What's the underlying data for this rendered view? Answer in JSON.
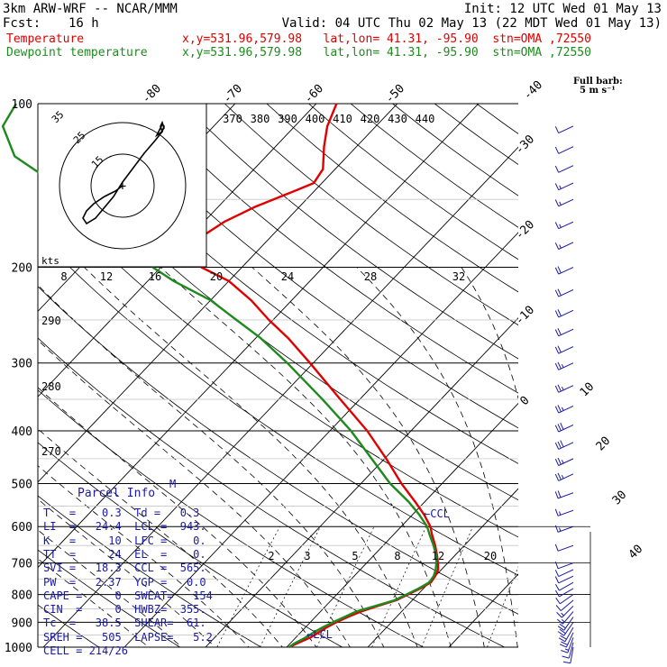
{
  "header": {
    "model": "3km ARW-WRF -- NCAR/MMM",
    "init": "Init: 12 UTC Wed 01 May 13",
    "fcst_label": "Fcst:",
    "fcst_value": "16 h",
    "valid": "Valid: 04 UTC Thu 02 May 13 (22 MDT Wed 01 May 13)",
    "temp_label": "Temperature",
    "temp_loc": "x,y=531.96,579.98   lat,lon= 41.31, -95.90  stn=OMA ,72550",
    "dew_label": "Dewpoint temperature",
    "dew_loc": "x,y=531.96,579.98   lat,lon= 41.31, -95.90  stn=OMA ,72550"
  },
  "barb_header": {
    "line1": "Full barb:",
    "line2": "5 m s⁻¹"
  },
  "hodo": {
    "kts_label": "kts",
    "rings": [
      "15",
      "25",
      "35"
    ]
  },
  "hodo_speed_ticks": [
    "8",
    "12",
    "16",
    "20",
    "24",
    "28",
    "32"
  ],
  "theta_e_labels": [
    "370",
    "380",
    "390",
    "400",
    "410",
    "420",
    "430",
    "440"
  ],
  "theta_labels": [
    "290",
    "280",
    "270"
  ],
  "mixing_labels": [
    "2",
    "3",
    "5",
    "8",
    "12",
    "20"
  ],
  "ccl_label": "CCL",
  "lcl_label": "LCL",
  "parcel": {
    "title": "Parcel Info",
    "lines": [
      "T   =    0.3  Td =   0.3",
      "LI  =   24.4  LCL =  943.",
      "K   =     10  LFC =    0.",
      "TT  =     24  EL  =    0.",
      "SVI =   18.3  CCL =  565.",
      "PW  =   2.37  YGP =   0.0",
      "CAPE =     0  SWEAT=   154",
      "CIN  =     0  HWBZ=  355.",
      "Tc  =   38.5  SHEAR=  61.",
      "SREH =   505  LAPSE=   5.2",
      "CELL = 214/26"
    ],
    "marker": "M"
  },
  "chart_data": {
    "type": "line",
    "title": "",
    "ylabel": "",
    "xlabel": "",
    "y_axis_scale": "log pressure (hPa)",
    "y_range_hPa": [
      1000,
      100
    ],
    "x_axis_scale": "skewed temperature (°C)",
    "pressure_ticks": [
      100,
      200,
      300,
      400,
      500,
      600,
      700,
      800,
      900,
      1000
    ],
    "isotherm_labels": [
      -80,
      -70,
      -60,
      -50,
      -40,
      -30,
      -20,
      -10,
      0,
      10,
      20,
      30,
      40
    ],
    "grid": true,
    "series": [
      {
        "name": "Temperature",
        "color": "#e00000",
        "points": [
          {
            "p": 1000,
            "t": 0.3
          },
          {
            "p": 985,
            "t": 0.8
          },
          {
            "p": 960,
            "t": 1.8
          },
          {
            "p": 940,
            "t": 2.2
          },
          {
            "p": 920,
            "t": 2.6
          },
          {
            "p": 900,
            "t": 3.2
          },
          {
            "p": 880,
            "t": 4.0
          },
          {
            "p": 860,
            "t": 5.0
          },
          {
            "p": 840,
            "t": 6.4
          },
          {
            "p": 820,
            "t": 8.0
          },
          {
            "p": 800,
            "t": 8.8
          },
          {
            "p": 780,
            "t": 9.6
          },
          {
            "p": 760,
            "t": 10.2
          },
          {
            "p": 740,
            "t": 10.0
          },
          {
            "p": 720,
            "t": 9.6
          },
          {
            "p": 700,
            "t": 8.8
          },
          {
            "p": 680,
            "t": 7.9
          },
          {
            "p": 650,
            "t": 6.4
          },
          {
            "p": 620,
            "t": 4.7
          },
          {
            "p": 600,
            "t": 3.6
          },
          {
            "p": 570,
            "t": 1.4
          },
          {
            "p": 540,
            "t": -1.2
          },
          {
            "p": 500,
            "t": -5.0
          },
          {
            "p": 450,
            "t": -9.8
          },
          {
            "p": 400,
            "t": -15.4
          },
          {
            "p": 350,
            "t": -22.4
          },
          {
            "p": 300,
            "t": -30.4
          },
          {
            "p": 270,
            "t": -36.0
          },
          {
            "p": 250,
            "t": -40.5
          },
          {
            "p": 230,
            "t": -45.0
          },
          {
            "p": 212,
            "t": -50.0
          },
          {
            "p": 200,
            "t": -55.0
          },
          {
            "p": 185,
            "t": -58.5
          },
          {
            "p": 175,
            "t": -58.5
          },
          {
            "p": 165,
            "t": -57.5
          },
          {
            "p": 155,
            "t": -55.5
          },
          {
            "p": 145,
            "t": -52.5
          },
          {
            "p": 140,
            "t": -51.0
          },
          {
            "p": 132,
            "t": -51.5
          },
          {
            "p": 120,
            "t": -54.0
          },
          {
            "p": 110,
            "t": -56.0
          },
          {
            "p": 100,
            "t": -57.5
          }
        ]
      },
      {
        "name": "Dewpoint temperature",
        "color": "#1e8a1e",
        "points": [
          {
            "p": 1000,
            "t": 0.3
          },
          {
            "p": 985,
            "t": 0.5
          },
          {
            "p": 960,
            "t": 1.2
          },
          {
            "p": 940,
            "t": 1.6
          },
          {
            "p": 920,
            "t": 2.1
          },
          {
            "p": 900,
            "t": 2.8
          },
          {
            "p": 880,
            "t": 3.6
          },
          {
            "p": 860,
            "t": 4.4
          },
          {
            "p": 840,
            "t": 6.1
          },
          {
            "p": 820,
            "t": 7.8
          },
          {
            "p": 800,
            "t": 8.6
          },
          {
            "p": 780,
            "t": 9.4
          },
          {
            "p": 760,
            "t": 10.0
          },
          {
            "p": 740,
            "t": 9.8
          },
          {
            "p": 720,
            "t": 9.3
          },
          {
            "p": 700,
            "t": 8.6
          },
          {
            "p": 680,
            "t": 7.8
          },
          {
            "p": 650,
            "t": 6.2
          },
          {
            "p": 620,
            "t": 4.4
          },
          {
            "p": 600,
            "t": 3.2
          },
          {
            "p": 570,
            "t": 0.8
          },
          {
            "p": 540,
            "t": -2.0
          },
          {
            "p": 500,
            "t": -6.4
          },
          {
            "p": 450,
            "t": -11.6
          },
          {
            "p": 400,
            "t": -17.4
          },
          {
            "p": 350,
            "t": -24.6
          },
          {
            "p": 300,
            "t": -33.2
          },
          {
            "p": 270,
            "t": -39.4
          },
          {
            "p": 250,
            "t": -44.5
          },
          {
            "p": 230,
            "t": -50.0
          },
          {
            "p": 212,
            "t": -56.8
          },
          {
            "p": 200,
            "t": -61.0
          },
          {
            "p": 185,
            "t": -64.4
          },
          {
            "p": 170,
            "t": -70.0
          },
          {
            "p": 155,
            "t": -76.0
          },
          {
            "p": 140,
            "t": -83.0
          },
          {
            "p": 125,
            "t": -91.0
          },
          {
            "p": 110,
            "t": -96.0
          },
          {
            "p": 100,
            "t": -97.0
          }
        ]
      }
    ],
    "wind_profile": {
      "units": "m s-1",
      "barbs": [
        {
          "p": 1000,
          "dir": 190,
          "spd": 8
        },
        {
          "p": 980,
          "dir": 195,
          "spd": 10
        },
        {
          "p": 960,
          "dir": 200,
          "spd": 14
        },
        {
          "p": 940,
          "dir": 205,
          "spd": 18
        },
        {
          "p": 920,
          "dir": 210,
          "spd": 20
        },
        {
          "p": 900,
          "dir": 215,
          "spd": 20
        },
        {
          "p": 880,
          "dir": 215,
          "spd": 18
        },
        {
          "p": 860,
          "dir": 220,
          "spd": 16
        },
        {
          "p": 840,
          "dir": 225,
          "spd": 14
        },
        {
          "p": 820,
          "dir": 230,
          "spd": 12
        },
        {
          "p": 800,
          "dir": 235,
          "spd": 10
        },
        {
          "p": 780,
          "dir": 240,
          "spd": 10
        },
        {
          "p": 760,
          "dir": 240,
          "spd": 10
        },
        {
          "p": 740,
          "dir": 245,
          "spd": 12
        },
        {
          "p": 720,
          "dir": 245,
          "spd": 12
        },
        {
          "p": 700,
          "dir": 250,
          "spd": 12
        },
        {
          "p": 650,
          "dir": 250,
          "spd": 12
        },
        {
          "p": 600,
          "dir": 250,
          "spd": 14
        },
        {
          "p": 560,
          "dir": 250,
          "spd": 16
        },
        {
          "p": 520,
          "dir": 250,
          "spd": 20
        },
        {
          "p": 480,
          "dir": 245,
          "spd": 24
        },
        {
          "p": 450,
          "dir": 245,
          "spd": 26
        },
        {
          "p": 420,
          "dir": 245,
          "spd": 28
        },
        {
          "p": 390,
          "dir": 245,
          "spd": 28
        },
        {
          "p": 360,
          "dir": 245,
          "spd": 26
        },
        {
          "p": 330,
          "dir": 245,
          "spd": 24
        },
        {
          "p": 300,
          "dir": 245,
          "spd": 24
        },
        {
          "p": 280,
          "dir": 245,
          "spd": 22
        },
        {
          "p": 260,
          "dir": 245,
          "spd": 20
        },
        {
          "p": 240,
          "dir": 245,
          "spd": 20
        },
        {
          "p": 220,
          "dir": 245,
          "spd": 18
        },
        {
          "p": 200,
          "dir": 245,
          "spd": 18
        },
        {
          "p": 180,
          "dir": 245,
          "spd": 16
        },
        {
          "p": 165,
          "dir": 245,
          "spd": 15
        },
        {
          "p": 150,
          "dir": 245,
          "spd": 14
        },
        {
          "p": 140,
          "dir": 245,
          "spd": 13
        },
        {
          "p": 130,
          "dir": 245,
          "spd": 12
        },
        {
          "p": 120,
          "dir": 245,
          "spd": 12
        },
        {
          "p": 110,
          "dir": 245,
          "spd": 12
        }
      ]
    },
    "hodograph_points_uv": [
      [
        0,
        0
      ],
      [
        -4,
        -3
      ],
      [
        -10,
        -6
      ],
      [
        -16,
        -10
      ],
      [
        -20,
        -14
      ],
      [
        -22,
        -18
      ],
      [
        -20,
        -21
      ],
      [
        -15,
        -18
      ],
      [
        -10,
        -12
      ],
      [
        -5,
        -6
      ],
      [
        0,
        2
      ],
      [
        6,
        10
      ],
      [
        12,
        18
      ],
      [
        18,
        25
      ],
      [
        22,
        30
      ],
      [
        23,
        33
      ],
      [
        22,
        34
      ],
      [
        20,
        30
      ],
      [
        19,
        28
      ],
      [
        22,
        30
      ],
      [
        21,
        33
      ],
      [
        22,
        35
      ],
      [
        23,
        32
      ],
      [
        21,
        29
      ]
    ]
  }
}
